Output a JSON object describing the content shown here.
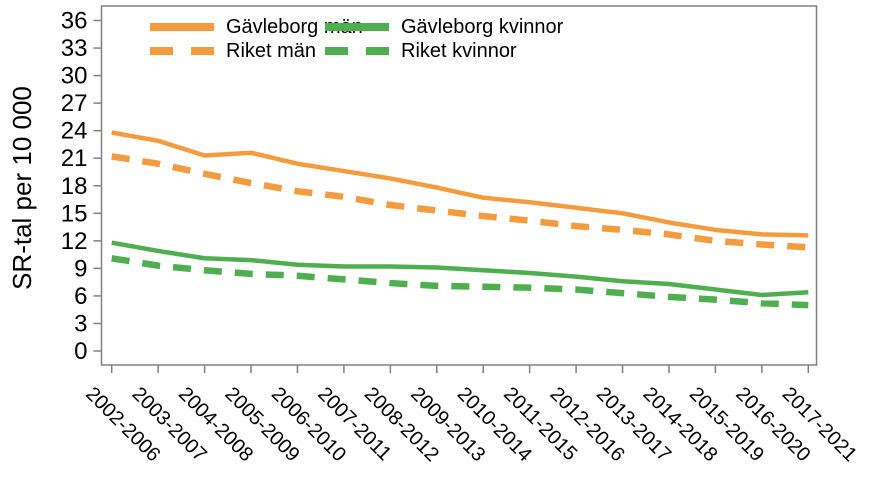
{
  "chart_data": {
    "type": "line",
    "title": "",
    "xlabel": "",
    "ylabel": "SR-tal per 10 000",
    "ylim": [
      0,
      36
    ],
    "ytick_step": 3,
    "grid": false,
    "legend_position": "top-inside",
    "axis_color": "#808080",
    "text_color": "#000000",
    "categories": [
      "2002-2006",
      "2003-2007",
      "2004-2008",
      "2005-2009",
      "2006-2010",
      "2007-2011",
      "2008-2012",
      "2009-2013",
      "2010-2014",
      "2011-2015",
      "2012-2016",
      "2013-2017",
      "2014-2018",
      "2015-2019",
      "2016-2020",
      "2017-2021"
    ],
    "series": [
      {
        "name": "Gävleborg män",
        "color": "#F49B3E",
        "style": "solid",
        "values": [
          23.8,
          22.9,
          21.3,
          21.6,
          20.4,
          19.6,
          18.8,
          17.8,
          16.7,
          16.2,
          15.6,
          15.0,
          14.0,
          13.2,
          12.7,
          12.6
        ]
      },
      {
        "name": "Riket män",
        "color": "#F49B3E",
        "style": "dashed",
        "values": [
          21.2,
          20.4,
          19.3,
          18.3,
          17.4,
          16.8,
          15.9,
          15.3,
          14.7,
          14.2,
          13.6,
          13.2,
          12.7,
          12.0,
          11.6,
          11.3
        ]
      },
      {
        "name": "Gävleborg kvinnor",
        "color": "#4FAF50",
        "style": "solid",
        "values": [
          11.8,
          10.9,
          10.1,
          9.9,
          9.4,
          9.2,
          9.2,
          9.1,
          8.8,
          8.5,
          8.1,
          7.6,
          7.3,
          6.7,
          6.1,
          6.4
        ]
      },
      {
        "name": "Riket kvinnor",
        "color": "#4FAF50",
        "style": "dashed",
        "values": [
          10.1,
          9.3,
          8.8,
          8.4,
          8.2,
          7.8,
          7.4,
          7.1,
          7.0,
          6.9,
          6.7,
          6.3,
          5.9,
          5.6,
          5.2,
          5.0
        ]
      }
    ]
  }
}
